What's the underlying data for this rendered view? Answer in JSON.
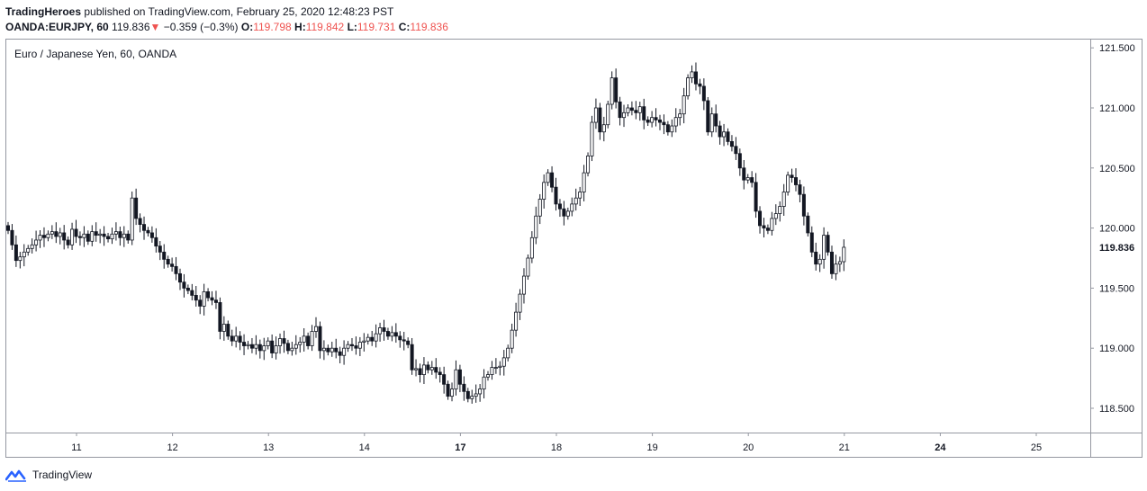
{
  "header": {
    "author": "TradingHeroes",
    "published": "published on TradingView.com, February 25, 2020 12:48:23 PST",
    "symbol": "OANDA:EURJPY, 60",
    "price": "119.836",
    "change_arrow": "▼",
    "change": "−0.359 (−0.3%)",
    "open_label": "O:",
    "open": "119.798",
    "high_label": "H:",
    "high": "119.842",
    "low_label": "L:",
    "low": "119.731",
    "close_label": "C:",
    "close": "119.836"
  },
  "legend": "Euro / Japanese Yen, 60, OANDA",
  "current_price_label": "119.836",
  "footer": {
    "brand": "TradingView",
    "logo_icon": "tradingview-cloud-icon"
  },
  "colors": {
    "candle": "#131722",
    "accent_red": "#ef5350",
    "axis": "#9598a1",
    "logo": "#2962ff"
  },
  "chart_data": {
    "type": "candlestick",
    "timeframe": "60",
    "y_ticks": [
      "118.500",
      "119.000",
      "119.500",
      "120.000",
      "120.500",
      "121.000",
      "121.500"
    ],
    "ylim": [
      118.25,
      121.75
    ],
    "x_ticks": [
      {
        "label": "11",
        "bold": false
      },
      {
        "label": "12",
        "bold": false
      },
      {
        "label": "13",
        "bold": false
      },
      {
        "label": "14",
        "bold": false
      },
      {
        "label": "17",
        "bold": true
      },
      {
        "label": "18",
        "bold": false
      },
      {
        "label": "19",
        "bold": false
      },
      {
        "label": "20",
        "bold": false
      },
      {
        "label": "21",
        "bold": false
      },
      {
        "label": "24",
        "bold": true
      },
      {
        "label": "25",
        "bold": false
      }
    ],
    "candles_per_day": 24,
    "closes": [
      119.98,
      119.86,
      119.73,
      119.76,
      119.8,
      119.83,
      119.86,
      119.9,
      119.94,
      119.92,
      119.95,
      119.97,
      119.93,
      119.96,
      119.9,
      119.86,
      119.99,
      119.93,
      119.92,
      119.95,
      119.89,
      119.97,
      119.94,
      119.95,
      119.93,
      119.91,
      119.95,
      119.97,
      119.92,
      119.95,
      119.9,
      120.25,
      120.08,
      120.03,
      119.98,
      119.96,
      119.92,
      119.85,
      119.8,
      119.74,
      119.7,
      119.68,
      119.62,
      119.55,
      119.5,
      119.48,
      119.44,
      119.4,
      119.35,
      119.47,
      119.42,
      119.4,
      119.38,
      119.14,
      119.2,
      119.1,
      119.06,
      119.1,
      119.05,
      119.02,
      119.03,
      119.0,
      119.03,
      118.98,
      119.02,
      119.06,
      118.96,
      119.02,
      119.08,
      119.04,
      118.98,
      119.0,
      119.03,
      119.05,
      119.1,
      119.02,
      119.14,
      119.18,
      118.98,
      119.0,
      118.97,
      119.0,
      118.97,
      118.94,
      119.0,
      119.03,
      119.02,
      119.0,
      119.05,
      119.06,
      119.09,
      119.06,
      119.12,
      119.17,
      119.14,
      119.1,
      119.13,
      119.1,
      119.07,
      119.06,
      119.03,
      118.82,
      118.83,
      118.78,
      118.86,
      118.82,
      118.84,
      118.8,
      118.78,
      118.7,
      118.6,
      118.66,
      118.82,
      118.7,
      118.64,
      118.58,
      118.6,
      118.62,
      118.66,
      118.76,
      118.78,
      118.84,
      118.84,
      118.85,
      118.92,
      119.0,
      119.15,
      119.3,
      119.45,
      119.6,
      119.75,
      119.92,
      120.1,
      120.24,
      120.38,
      120.46,
      120.34,
      120.2,
      120.16,
      120.1,
      120.14,
      120.2,
      120.25,
      120.3,
      120.46,
      120.6,
      120.88,
      121.0,
      120.8,
      120.86,
      121.03,
      121.25,
      121.05,
      120.92,
      120.96,
      121.0,
      120.98,
      120.96,
      121.01,
      120.9,
      120.88,
      120.92,
      120.9,
      120.88,
      120.86,
      120.8,
      120.85,
      120.92,
      120.95,
      121.1,
      121.25,
      121.3,
      121.2,
      121.18,
      121.06,
      120.8,
      120.95,
      120.85,
      120.76,
      120.8,
      120.72,
      120.68,
      120.62,
      120.5,
      120.4,
      120.42,
      120.38,
      120.14,
      120.02,
      120.0,
      119.98,
      120.08,
      120.12,
      120.18,
      120.3,
      120.44,
      120.42,
      120.36,
      120.28,
      120.1,
      119.96,
      119.8,
      119.7,
      119.74,
      119.94,
      119.8,
      119.62,
      119.7,
      119.72,
      119.84
    ]
  }
}
